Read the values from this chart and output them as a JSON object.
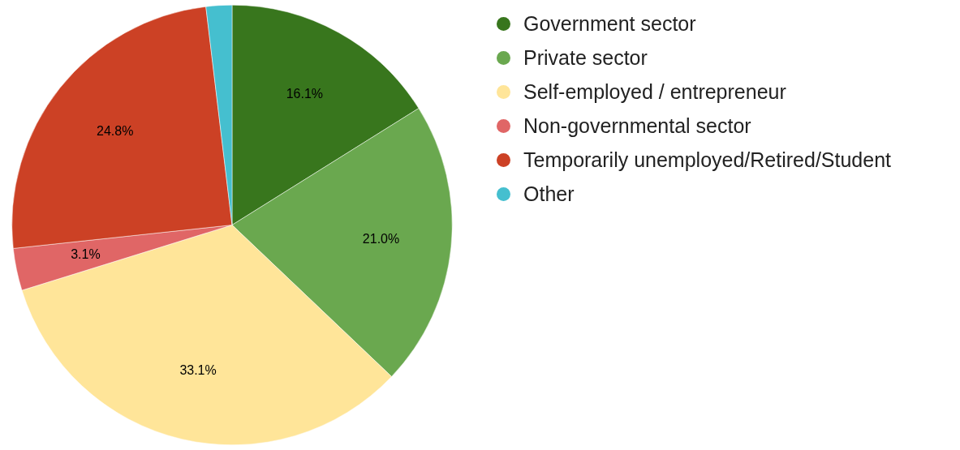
{
  "chart_data": {
    "type": "pie",
    "categories": [
      "Government sector",
      "Private sector",
      "Self-employed / entrepreneur",
      "Non-governmental sector",
      "Temporarily unemployed/Retired/Student",
      "Other"
    ],
    "values": [
      16.1,
      21.0,
      33.1,
      3.1,
      24.8,
      1.9
    ],
    "colors": [
      "#38761d",
      "#6aa84f",
      "#ffe599",
      "#e06666",
      "#cc4125",
      "#45bfcf"
    ],
    "value_labels": [
      "16.1%",
      "21.0%",
      "33.1%",
      "3.1%",
      "24.8%",
      null
    ],
    "legend": "top right"
  }
}
